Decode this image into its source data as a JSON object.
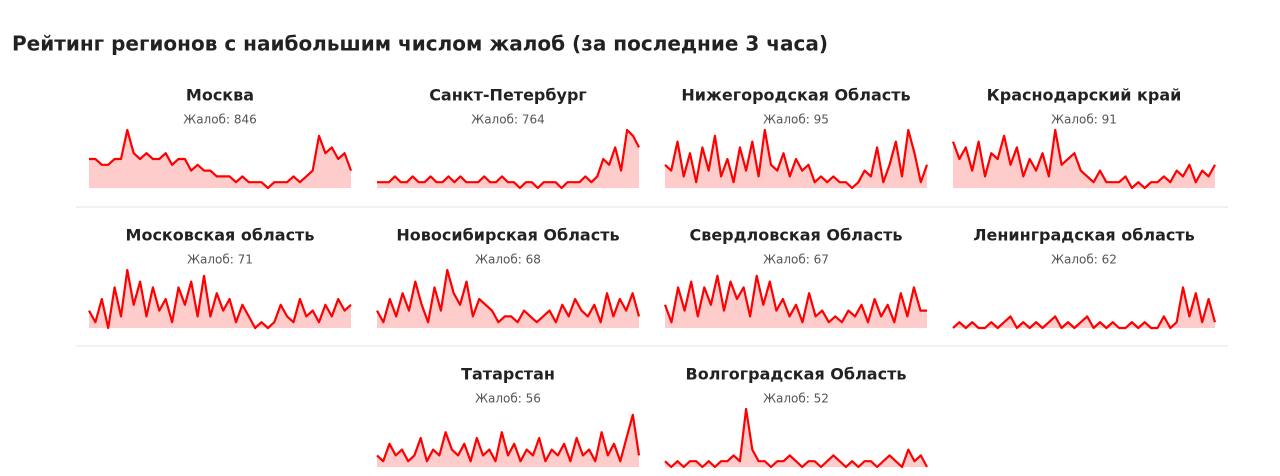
{
  "header": {
    "title": "Рейтинг регионов с наибольшим числом жалоб (за последние 3 часа)"
  },
  "line_color": "#ff0000",
  "fill_color": "#ffcccc",
  "ylim": [
    0,
    10
  ],
  "panels": [
    {
      "name": "Москва",
      "count_label": "Жалоб: 846",
      "values": [
        5,
        5,
        4,
        4,
        5,
        5,
        10,
        6,
        5,
        6,
        5,
        5,
        6,
        4,
        5,
        5,
        3,
        4,
        3,
        3,
        2,
        2,
        2,
        1,
        2,
        1,
        1,
        1,
        0,
        1,
        1,
        1,
        2,
        1,
        2,
        3,
        9,
        6,
        7,
        5,
        6,
        3
      ]
    },
    {
      "name": "Санкт-Петербург",
      "count_label": "Жалоб: 764",
      "values": [
        1,
        1,
        1,
        2,
        1,
        1,
        2,
        1,
        1,
        2,
        1,
        1,
        2,
        1,
        2,
        1,
        1,
        1,
        2,
        1,
        1,
        2,
        1,
        1,
        0,
        1,
        1,
        0,
        1,
        1,
        1,
        0,
        1,
        1,
        1,
        2,
        1,
        2,
        5,
        4,
        7,
        3,
        10,
        9,
        7
      ]
    },
    {
      "name": "Нижегородская Область",
      "count_label": "Жалоб: 95",
      "values": [
        4,
        3,
        8,
        2,
        6,
        1,
        7,
        3,
        9,
        2,
        5,
        1,
        7,
        3,
        8,
        2,
        10,
        4,
        3,
        6,
        2,
        5,
        3,
        4,
        1,
        2,
        1,
        2,
        1,
        1,
        0,
        1,
        3,
        2,
        7,
        1,
        4,
        8,
        2,
        10,
        6,
        1,
        4
      ]
    },
    {
      "name": "Краснодарский край",
      "count_label": "Жалоб: 91",
      "values": [
        8,
        5,
        7,
        3,
        8,
        2,
        6,
        5,
        9,
        4,
        7,
        2,
        5,
        3,
        6,
        2,
        10,
        4,
        5,
        6,
        3,
        2,
        1,
        3,
        1,
        1,
        1,
        2,
        0,
        1,
        0,
        1,
        1,
        2,
        1,
        3,
        2,
        4,
        1,
        3,
        2,
        4
      ]
    },
    {
      "name": "Московская область",
      "count_label": "Жалоб: 71",
      "values": [
        3,
        1,
        5,
        0,
        7,
        2,
        10,
        4,
        8,
        2,
        7,
        3,
        5,
        1,
        7,
        4,
        8,
        2,
        9,
        2,
        6,
        3,
        5,
        1,
        4,
        2,
        0,
        1,
        0,
        1,
        4,
        2,
        1,
        5,
        2,
        3,
        1,
        4,
        2,
        5,
        3,
        4
      ]
    },
    {
      "name": "Новосибирская Область",
      "count_label": "Жалоб: 68",
      "values": [
        3,
        1,
        5,
        2,
        6,
        3,
        8,
        4,
        1,
        7,
        3,
        10,
        6,
        4,
        8,
        2,
        5,
        4,
        3,
        1,
        2,
        2,
        1,
        3,
        2,
        1,
        2,
        3,
        1,
        4,
        2,
        5,
        3,
        2,
        4,
        1,
        6,
        2,
        5,
        3,
        6,
        2
      ]
    },
    {
      "name": "Свердловская Область",
      "count_label": "Жалоб: 67",
      "values": [
        4,
        1,
        7,
        3,
        8,
        2,
        7,
        4,
        9,
        3,
        8,
        5,
        7,
        2,
        9,
        4,
        8,
        3,
        5,
        2,
        4,
        1,
        6,
        2,
        3,
        1,
        2,
        1,
        3,
        2,
        4,
        1,
        5,
        2,
        4,
        1,
        6,
        2,
        7,
        3,
        3
      ]
    },
    {
      "name": "Ленинградская область",
      "count_label": "Жалоб: 62",
      "values": [
        0,
        1,
        0,
        1,
        0,
        0,
        1,
        0,
        1,
        2,
        0,
        1,
        0,
        1,
        0,
        1,
        2,
        0,
        1,
        0,
        1,
        2,
        0,
        1,
        0,
        1,
        0,
        0,
        1,
        0,
        1,
        0,
        0,
        2,
        0,
        1,
        7,
        2,
        6,
        1,
        5,
        1
      ]
    },
    {
      "name": "Татарстан",
      "count_label": "Жалоб: 56",
      "values": [
        2,
        1,
        4,
        2,
        3,
        1,
        2,
        5,
        1,
        3,
        2,
        6,
        3,
        2,
        4,
        1,
        5,
        2,
        3,
        1,
        6,
        2,
        4,
        1,
        3,
        2,
        5,
        1,
        3,
        2,
        4,
        1,
        5,
        2,
        3,
        1,
        6,
        2,
        4,
        1,
        5,
        9,
        2
      ]
    },
    {
      "name": "Волгоградская Область",
      "count_label": "Жалоб: 52",
      "values": [
        1,
        0,
        1,
        0,
        1,
        1,
        0,
        1,
        0,
        1,
        1,
        2,
        1,
        10,
        3,
        1,
        1,
        0,
        1,
        1,
        2,
        1,
        0,
        1,
        1,
        0,
        1,
        2,
        1,
        0,
        1,
        0,
        1,
        1,
        0,
        1,
        2,
        1,
        0,
        3,
        1,
        2,
        0
      ]
    }
  ]
}
